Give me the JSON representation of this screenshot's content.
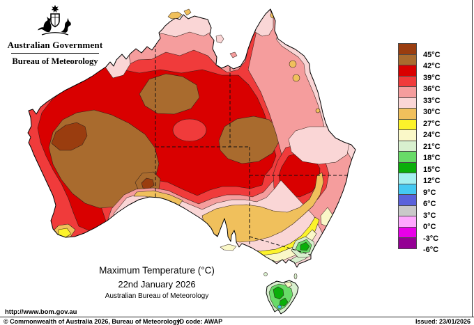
{
  "header": {
    "org_line1": "Australian Government",
    "org_line2": "Bureau of Meteorology"
  },
  "title": {
    "line1": "Maximum Temperature (°C)",
    "line2": "22nd January 2026",
    "line3": "Australian Bureau of Meteorology"
  },
  "legend": {
    "labels": [
      "45°C",
      "42°C",
      "39°C",
      "36°C",
      "33°C",
      "30°C",
      "27°C",
      "24°C",
      "21°C",
      "18°C",
      "15°C",
      "12°C",
      "9°C",
      "6°C",
      "3°C",
      "0°C",
      "-3°C",
      "-6°C"
    ],
    "boxes": [
      {
        "name": "above-45",
        "color": "#9A3D0F",
        "dotted": false
      },
      {
        "name": "42-45",
        "color": "#A96B2E",
        "dotted": false
      },
      {
        "name": "39-42",
        "color": "#D90000",
        "dotted": false
      },
      {
        "name": "36-39",
        "color": "#F03B3B",
        "dotted": true
      },
      {
        "name": "33-36",
        "color": "#F59D9D",
        "dotted": false
      },
      {
        "name": "30-33",
        "color": "#FAD6D6",
        "dotted": true
      },
      {
        "name": "27-30",
        "color": "#F0C05C",
        "dotted": false
      },
      {
        "name": "24-27",
        "color": "#FCF32B",
        "dotted": false
      },
      {
        "name": "21-24",
        "color": "#FAF8C8",
        "dotted": true
      },
      {
        "name": "18-21",
        "color": "#D8F0CF",
        "dotted": false
      },
      {
        "name": "15-18",
        "color": "#68DB68",
        "dotted": true
      },
      {
        "name": "12-15",
        "color": "#0AAE0A",
        "dotted": false
      },
      {
        "name": "9-12",
        "color": "#A4F0F0",
        "dotted": false
      },
      {
        "name": "6-9",
        "color": "#45C9F2",
        "dotted": true
      },
      {
        "name": "3-6",
        "color": "#5A62DB",
        "dotted": false
      },
      {
        "name": "0-3",
        "color": "#C9C9C9",
        "dotted": false
      },
      {
        "name": "-3-0",
        "color": "#FFA8FF",
        "dotted": true
      },
      {
        "name": "-6--3",
        "color": "#E800E8",
        "dotted": false
      },
      {
        "name": "below--6",
        "color": "#940094",
        "dotted": false
      }
    ]
  },
  "footer": {
    "url": "http://www.bom.gov.au",
    "copyright": "© Commonwealth of Australia 2026, Bureau of Meteorology",
    "id_code": "ID code: AWAP",
    "issued": "Issued: 23/01/2026"
  },
  "map": {
    "region": "Australia",
    "kind": "maximum temperature analysis contour map"
  }
}
